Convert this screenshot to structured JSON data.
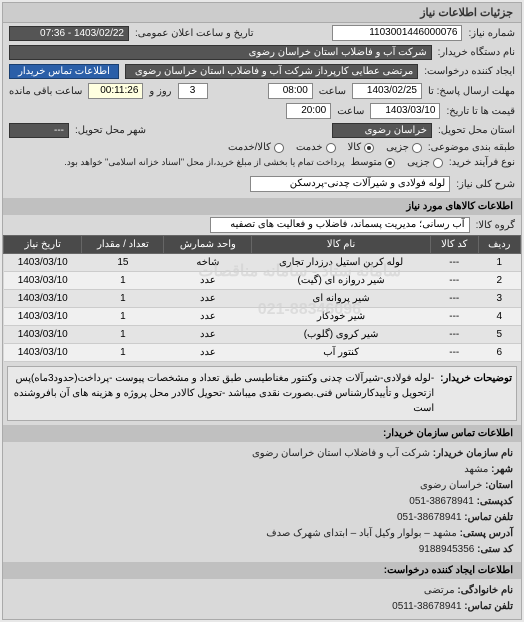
{
  "panel_title": "جزئیات اطلاعات نیاز",
  "req_number_label": "شماره نیاز:",
  "req_number": "1103001446000076",
  "announce_label": "تاریخ و ساعت اعلان عمومی:",
  "announce_value": "1403/02/22 - 07:36",
  "buyer_label": "نام دستگاه خریدار:",
  "buyer_value": "شرکت آب و فاضلاب استان خراسان رضوی",
  "requester_label": "ایجاد کننده درخواست:",
  "requester_value": "مرتضی عطایی کارپرداز شرکت آب و فاضلاب استان خراسان رضوی",
  "contact_label": "اطلاعات تماس خریدار",
  "deadline_send_label": "مهلت ارسال پاسخ: تا",
  "deadline_send_date": "1403/02/25",
  "time_label": "ساعت",
  "deadline_send_time": "08:00",
  "remain_label_prefix": "",
  "remain_days": "3",
  "remain_days_label": "روز و",
  "remain_time": "00:11:26",
  "remain_time_label": "ساعت باقی مانده",
  "validity_label": "قیمت ها تا تاریخ:",
  "validity_date": "1403/03/10",
  "validity_time": "20:00",
  "province_label": "استان محل تحویل:",
  "province_value": "خراسان رضوی",
  "city_label": "شهر محل تحویل:",
  "city_value": "---",
  "class_label": "طبقه بندی موضوعی:",
  "radio_jozi": "جزیی",
  "radio_kala": "کالا",
  "radio_khedmat": "خدمت",
  "radio_kala_khedmat": "کالا/خدمت",
  "process_label": "نوع فرآیند خرید:",
  "radio_jozi2": "جزیی",
  "radio_motavaset": "متوسط",
  "process_note": "پرداخت تمام یا بخشی از مبلغ خرید،از محل \"اسناد خزانه اسلامی\" خواهد بود.",
  "need_title_label": "شرح کلی نیاز:",
  "need_title_value": "لوله فولادی و شیرآلات چدنی-پردسکن",
  "goods_section": "اطلاعات کالاهای مورد نیاز",
  "goods_group_label": "گروه کالا:",
  "goods_group_value": "آب رسانی؛ مدیریت پسماند، فاضلاب و فعالیت های تصفیه",
  "table": {
    "headers": [
      "ردیف",
      "کد کالا",
      "نام کالا",
      "واحد شمارش",
      "تعداد / مقدار",
      "تاریخ نیاز"
    ],
    "rows": [
      [
        "1",
        "---",
        "لوله کربن استیل درزدار تجاری",
        "شاخه",
        "15",
        "1403/03/10"
      ],
      [
        "2",
        "---",
        "شیر دروازه ای (گیت)",
        "عدد",
        "1",
        "1403/03/10"
      ],
      [
        "3",
        "---",
        "شیر پروانه ای",
        "عدد",
        "1",
        "1403/03/10"
      ],
      [
        "4",
        "---",
        "شیر خودکار",
        "عدد",
        "1",
        "1403/03/10"
      ],
      [
        "5",
        "---",
        "شیر کروی (گلوب)",
        "عدد",
        "1",
        "1403/03/10"
      ],
      [
        "6",
        "---",
        "کنتور آب",
        "عدد",
        "1",
        "1403/03/10"
      ]
    ]
  },
  "desc_label": "توضیحات خریدار:",
  "desc_text": "-لوله فولادی-شیرآلات چدنی وکنتور مغناطیسی طبق تعداد و مشخصات پیوست -پرداخت(حدود3ماه)پس ازتحویل و تأییدکارشناس فنی.بصورت نقدی میباشد -تحویل کالادر محل پروژه و هزینه های آن بافروشنده است",
  "contact_section": "اطلاعات تماس سازمان خریدار:",
  "org_name_label": "نام سازمان خریدار:",
  "org_name": "شرکت آب و فاضلاب استان خراسان رضوی",
  "org_city_label": "شهر:",
  "org_city": "مشهد",
  "org_province_label": "استان:",
  "org_province": "خراسان رضوی",
  "org_post_label": "کدپستی:",
  "org_post": "38678941-051",
  "org_tel_label": "تلفن تماس:",
  "org_tel": "38678941-051",
  "org_addr_label": "آدرس پستی:",
  "org_addr": "مشهد – بولوار وکیل آباد – ابتدای شهرک صدف",
  "org_id_label": "کد ستی:",
  "org_id": "9188945356",
  "creator_section": "اطلاعات ایجاد کننده درخواست:",
  "creator_name_label": "نام خانوادگی:",
  "creator_name": "مرتضی",
  "creator_tel_label": "تلفن تماس:",
  "creator_tel": "38678941-0511",
  "watermark1": "سامانه ستاد - سامانه مناقصات",
  "watermark2": "021-88346096"
}
